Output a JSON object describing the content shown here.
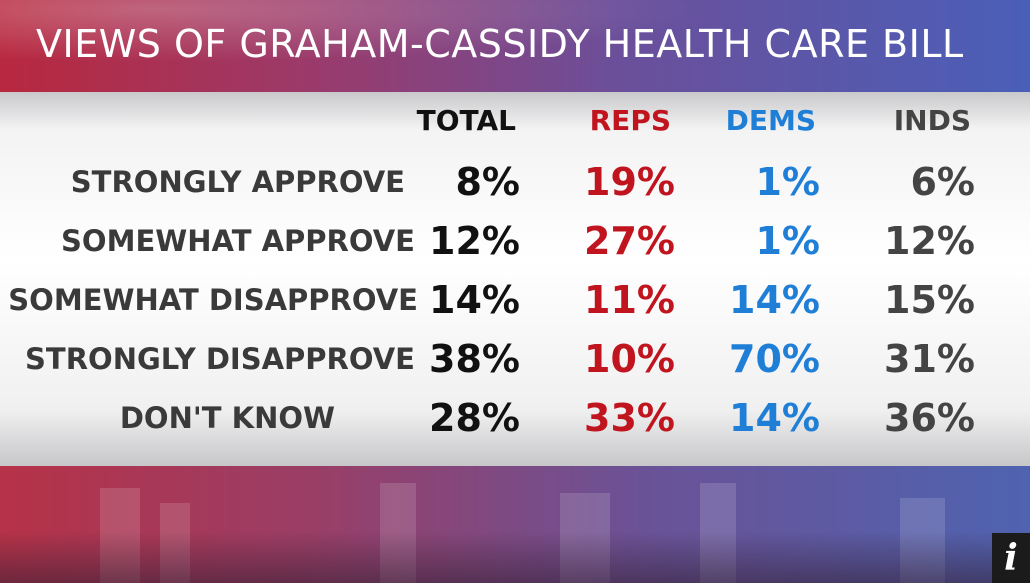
{
  "chart_data": {
    "type": "table",
    "title": "VIEWS OF GRAHAM-CASSIDY HEALTH CARE BILL",
    "columns": [
      "TOTAL",
      "REPS",
      "DEMS",
      "INDS"
    ],
    "rows": [
      {
        "label": "STRONGLY APPROVE",
        "values": [
          "8%",
          "19%",
          "1%",
          "6%"
        ]
      },
      {
        "label": "SOMEWHAT APPROVE",
        "values": [
          "12%",
          "27%",
          "1%",
          "12%"
        ]
      },
      {
        "label": "SOMEWHAT DISAPPROVE",
        "values": [
          "14%",
          "11%",
          "14%",
          "15%"
        ]
      },
      {
        "label": "STRONGLY DISAPPROVE",
        "values": [
          "38%",
          "10%",
          "70%",
          "31%"
        ]
      },
      {
        "label": "DON'T KNOW",
        "values": [
          "28%",
          "33%",
          "14%",
          "36%"
        ]
      }
    ],
    "column_colors": [
      "#111111",
      "#c0151f",
      "#1f7fd6",
      "#444444"
    ]
  },
  "info_button": {
    "label": "i"
  }
}
